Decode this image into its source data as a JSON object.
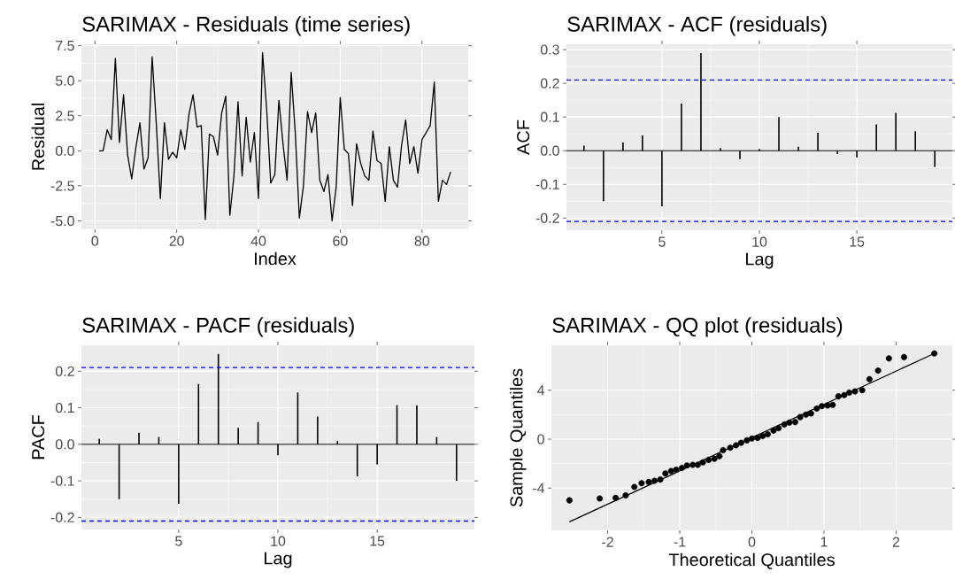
{
  "chart_data": [
    {
      "type": "line",
      "title": "SARIMAX - Residuals (time series)",
      "xlabel": "Index",
      "ylabel": "Residual",
      "color": "#000000",
      "grid": true,
      "x": [
        1,
        2,
        3,
        4,
        5,
        6,
        7,
        8,
        9,
        10,
        11,
        12,
        13,
        14,
        15,
        16,
        17,
        18,
        19,
        20,
        21,
        22,
        23,
        24,
        25,
        26,
        27,
        28,
        29,
        30,
        31,
        32,
        33,
        34,
        35,
        36,
        37,
        38,
        39,
        40,
        41,
        42,
        43,
        44,
        45,
        46,
        47,
        48,
        49,
        50,
        51,
        52,
        53,
        54,
        55,
        56,
        57,
        58,
        59,
        60,
        61,
        62,
        63,
        64,
        65,
        66,
        67,
        68,
        69,
        70,
        71,
        72,
        73,
        74,
        75,
        76,
        77,
        78,
        79,
        80,
        81,
        82,
        83,
        84,
        85,
        86,
        87
      ],
      "values": [
        0,
        0,
        1.5,
        0.8,
        6.6,
        0.6,
        4.0,
        -0.3,
        -2.0,
        0.2,
        2.0,
        -1.3,
        -0.5,
        6.7,
        2.0,
        -3.4,
        2.0,
        -0.6,
        -0.1,
        -0.5,
        1.5,
        0.1,
        2.6,
        4.0,
        1.7,
        1.8,
        -4.9,
        1.2,
        1.0,
        -0.3,
        2.7,
        3.9,
        -4.6,
        -1.8,
        3.5,
        -1.8,
        2.4,
        -0.8,
        1.3,
        -3.4,
        7.0,
        3.0,
        -2.3,
        -1.7,
        3.6,
        0.5,
        -2.1,
        5.6,
        1.3,
        -4.8,
        -2.5,
        2.8,
        1.3,
        2.7,
        -2.1,
        -2.9,
        -1.7,
        -5.0,
        -2.6,
        3.8,
        0.1,
        -0.2,
        -3.9,
        0.5,
        -0.9,
        -1.8,
        -2.1,
        1.4,
        -0.7,
        -0.9,
        -3.6,
        0.3,
        -2.1,
        -2.6,
        0.4,
        2.2,
        -0.9,
        0.3,
        -1.6,
        0.8,
        1.3,
        1.8,
        4.9,
        -3.6,
        -2.1,
        -2.4,
        -1.5
      ],
      "xlim": [
        -3.3,
        91.3
      ],
      "ylim": [
        -5.6,
        7.6
      ],
      "xticks": [
        0,
        20,
        40,
        60,
        80
      ],
      "yticks": [
        {
          "value": -5,
          "label": "-5.0"
        },
        -2.5,
        {
          "value": 0,
          "label": "0.0"
        },
        2.5,
        {
          "value": 5,
          "label": "5.0"
        },
        7.5
      ]
    },
    {
      "type": "bar",
      "title": "SARIMAX - ACF (residuals)",
      "xlabel": "Lag",
      "ylabel": "ACF",
      "color": "#000000",
      "grid": true,
      "x": [
        1,
        2,
        3,
        4,
        5,
        6,
        7,
        8,
        9,
        10,
        11,
        12,
        13,
        14,
        15,
        16,
        17,
        18,
        19
      ],
      "values": [
        0.015,
        -0.15,
        0.025,
        0.045,
        -0.165,
        0.14,
        0.29,
        0.008,
        -0.025,
        0.005,
        0.1,
        0.012,
        0.053,
        -0.01,
        -0.02,
        0.078,
        0.112,
        0.058,
        -0.048
      ],
      "xlim": [
        0.1,
        19.9
      ],
      "ylim": [
        -0.236,
        0.316
      ],
      "xticks": [
        5,
        10,
        15
      ],
      "yticks": [
        -0.2,
        -0.1,
        {
          "value": 0,
          "label": "0.0"
        },
        0.1,
        0.2,
        0.3
      ],
      "ref_lines": [
        {
          "axis": "y",
          "value": 0.21,
          "color": "#0000ff",
          "line_style": "dashed"
        },
        {
          "axis": "y",
          "value": -0.21,
          "color": "#0000ff",
          "line_style": "dashed"
        }
      ]
    },
    {
      "type": "bar",
      "title": "SARIMAX - PACF (residuals)",
      "xlabel": "Lag",
      "ylabel": "PACF",
      "color": "#000000",
      "grid": true,
      "x": [
        1,
        2,
        3,
        4,
        5,
        6,
        7,
        8,
        9,
        10,
        11,
        12,
        13,
        14,
        15,
        16,
        17,
        18,
        19
      ],
      "values": [
        0.015,
        -0.15,
        0.032,
        0.02,
        -0.163,
        0.165,
        0.247,
        0.045,
        0.061,
        -0.03,
        0.142,
        0.076,
        0.009,
        -0.088,
        -0.055,
        0.107,
        0.107,
        0.02,
        -0.1
      ],
      "xlim": [
        0.1,
        19.9
      ],
      "ylim": [
        -0.233,
        0.271
      ],
      "xticks": [
        5,
        10,
        15
      ],
      "yticks": [
        -0.2,
        -0.1,
        {
          "value": 0,
          "label": "0.0"
        },
        0.1,
        0.2
      ],
      "ref_lines": [
        {
          "axis": "y",
          "value": 0.21,
          "color": "#0000ff",
          "line_style": "dashed"
        },
        {
          "axis": "y",
          "value": -0.21,
          "color": "#0000ff",
          "line_style": "dashed"
        }
      ]
    },
    {
      "type": "scatter",
      "title": "SARIMAX - QQ plot (residuals)",
      "xlabel": "Theoretical Quantiles",
      "ylabel": "Sample Quantiles",
      "grid": true,
      "series": [
        {
          "type": "scatter",
          "marker": "circle",
          "color": "#000000",
          "x": [
            -2.53,
            -2.11,
            -1.89,
            -1.75,
            -1.63,
            -1.53,
            -1.43,
            -1.35,
            -1.27,
            -1.2,
            -1.12,
            -1.05,
            -0.97,
            -0.9,
            -0.82,
            -0.75,
            -0.68,
            -0.6,
            -0.52,
            -0.45,
            -0.4,
            -0.3,
            -0.22,
            -0.15,
            -0.07,
            0,
            0.08,
            0.15,
            0.22,
            0.3,
            0.37,
            0.45,
            0.52,
            0.6,
            0.67,
            0.75,
            0.82,
            0.9,
            0.97,
            1.05,
            1.12,
            1.2,
            1.28,
            1.35,
            1.43,
            1.53,
            1.63,
            1.75,
            1.9,
            2.11,
            2.53
          ],
          "values": [
            -5.0,
            -4.85,
            -4.8,
            -4.6,
            -3.9,
            -3.6,
            -3.5,
            -3.4,
            -3.3,
            -2.8,
            -2.6,
            -2.5,
            -2.35,
            -2.15,
            -2.1,
            -2.1,
            -1.9,
            -1.7,
            -1.6,
            -1.4,
            -0.9,
            -0.7,
            -0.5,
            -0.3,
            -0.1,
            0.05,
            0.1,
            0.25,
            0.4,
            0.7,
            0.9,
            1.2,
            1.35,
            1.4,
            1.8,
            2.0,
            2.1,
            2.5,
            2.7,
            2.75,
            2.8,
            3.5,
            3.6,
            3.8,
            3.9,
            4.0,
            4.9,
            5.6,
            6.6,
            6.7,
            7.0
          ]
        },
        {
          "type": "line",
          "color": "#000000",
          "x": [
            -2.53,
            2.53
          ],
          "values": [
            -6.75,
            7.0
          ]
        }
      ],
      "xlim": [
        -2.78,
        2.78
      ],
      "ylim": [
        -7.45,
        7.67
      ],
      "xticks": [
        -2,
        -1,
        0,
        1,
        2
      ],
      "yticks": [
        -4,
        0,
        4
      ]
    }
  ]
}
